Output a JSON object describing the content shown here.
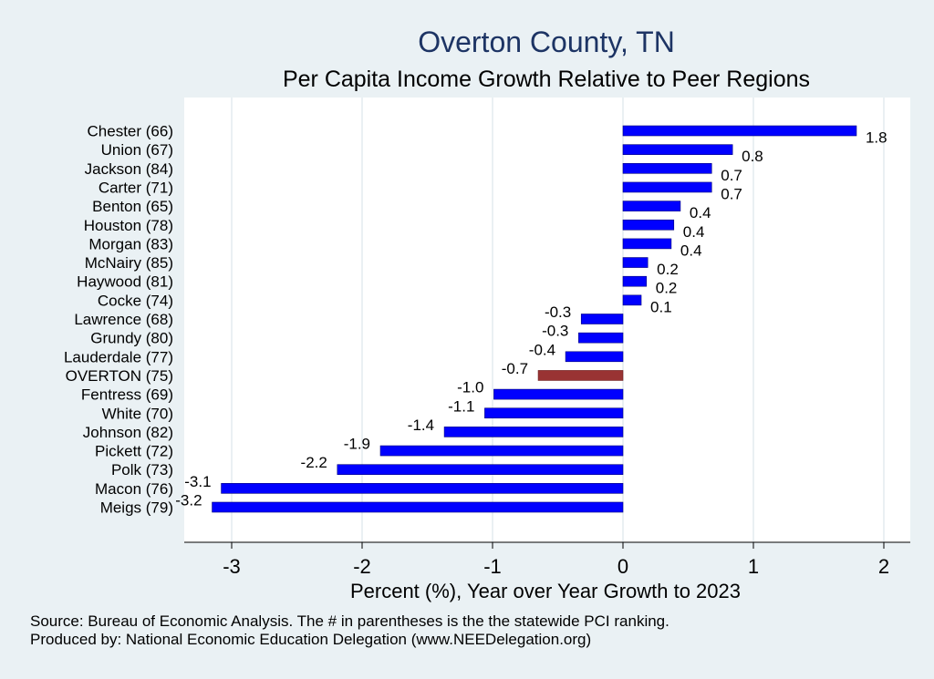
{
  "header": {
    "title": "Overton County, TN",
    "subtitle": "Per Capita Income Growth Relative to Peer Regions"
  },
  "footer": {
    "source": "Source: Bureau of Economic Analysis. The # in parentheses is the the statewide PCI ranking.",
    "produced_by": "Produced by: National Economic Education Delegation (www.NEEDelegation.org)"
  },
  "colors": {
    "background": "#eaf1f4",
    "plot_background": "#ffffff",
    "bar": "#0000ff",
    "highlight_bar": "#993333",
    "title": "#1d3464"
  },
  "chart_data": {
    "type": "bar",
    "orientation": "horizontal",
    "title": "Overton County, TN",
    "subtitle": "Per Capita Income Growth Relative to Peer Regions",
    "xlabel": "Percent (%), Year over Year Growth to 2023",
    "ylabel": "",
    "xlim": [
      -3.35,
      2.2
    ],
    "xticks": [
      -3,
      -2,
      -1,
      0,
      1,
      2
    ],
    "grid": true,
    "highlight": "OVERTON (75)",
    "categories": [
      "Chester (66)",
      "Union (67)",
      "Jackson (84)",
      "Carter (71)",
      "Benton (65)",
      "Houston (78)",
      "Morgan (83)",
      "McNairy (85)",
      "Haywood (81)",
      "Cocke (74)",
      "Lawrence (68)",
      "Grundy (80)",
      "Lauderdale (77)",
      "OVERTON (75)",
      "Fentress (69)",
      "White (70)",
      "Johnson (82)",
      "Pickett (72)",
      "Polk (73)",
      "Macon (76)",
      "Meigs (79)"
    ],
    "values": [
      1.79,
      0.84,
      0.68,
      0.68,
      0.44,
      0.39,
      0.37,
      0.19,
      0.18,
      0.14,
      -0.32,
      -0.34,
      -0.44,
      -0.65,
      -0.99,
      -1.06,
      -1.37,
      -1.86,
      -2.19,
      -3.08,
      -3.15
    ],
    "data_labels": [
      "1.8",
      "0.8",
      "0.7",
      "0.7",
      "0.4",
      "0.4",
      "0.4",
      "0.2",
      "0.2",
      "0.1",
      "-0.3",
      "-0.3",
      "-0.4",
      "-0.7",
      "-1.0",
      "-1.1",
      "-1.4",
      "-1.9",
      "-2.2",
      "-3.1",
      "-3.2"
    ]
  }
}
